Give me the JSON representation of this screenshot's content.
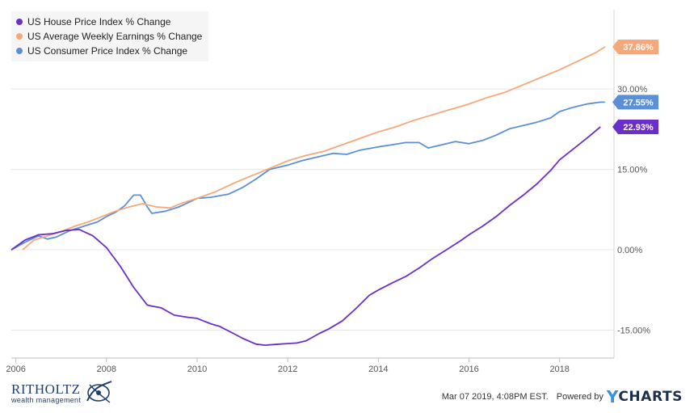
{
  "chart_data": {
    "type": "line",
    "title": "",
    "xlabel": "",
    "ylabel": "",
    "x_range": [
      2005.9,
      2019.2
    ],
    "y_range": [
      -20.2,
      44.8
    ],
    "y_ticks": [
      {
        "value": 30,
        "label": "30.00%"
      },
      {
        "value": 15,
        "label": "15.00%"
      },
      {
        "value": 0,
        "label": "0.00%"
      },
      {
        "value": -15,
        "label": "-15.00%"
      }
    ],
    "x_ticks": [
      {
        "value": 2006,
        "label": "2006"
      },
      {
        "value": 2008,
        "label": "2008"
      },
      {
        "value": 2010,
        "label": "2010"
      },
      {
        "value": 2012,
        "label": "2012"
      },
      {
        "value": 2014,
        "label": "2014"
      },
      {
        "value": 2016,
        "label": "2016"
      },
      {
        "value": 2018,
        "label": "2018"
      }
    ],
    "grid": "horizontal",
    "legend_position": "top-left",
    "series": [
      {
        "name": "US House Price Index % Change",
        "color": "#6a2fc9",
        "end_label": "22.93%",
        "end_value": 22.93,
        "x": [
          2005.9,
          2006.2,
          2006.5,
          2006.8,
          2007.1,
          2007.4,
          2007.7,
          2008.0,
          2008.3,
          2008.6,
          2008.9,
          2009.0,
          2009.2,
          2009.5,
          2009.8,
          2010.0,
          2010.3,
          2010.5,
          2010.8,
          2011.0,
          2011.3,
          2011.5,
          2011.8,
          2012.0,
          2012.2,
          2012.4,
          2012.7,
          2012.9,
          2013.2,
          2013.5,
          2013.8,
          2014.0,
          2014.3,
          2014.6,
          2014.9,
          2015.2,
          2015.5,
          2015.8,
          2016.0,
          2016.3,
          2016.6,
          2016.9,
          2017.2,
          2017.5,
          2017.8,
          2018.0,
          2018.3,
          2018.6,
          2018.9
        ],
        "values": [
          0.0,
          1.8,
          2.8,
          3.0,
          3.6,
          3.8,
          2.6,
          0.4,
          -3.0,
          -7.0,
          -10.3,
          -10.5,
          -10.8,
          -12.2,
          -12.6,
          -12.8,
          -13.8,
          -14.3,
          -15.6,
          -16.5,
          -17.6,
          -17.8,
          -17.6,
          -17.5,
          -17.4,
          -17.0,
          -15.6,
          -14.8,
          -13.3,
          -11.0,
          -8.5,
          -7.5,
          -6.2,
          -5.0,
          -3.4,
          -1.6,
          0.0,
          1.6,
          2.8,
          4.4,
          6.2,
          8.3,
          10.2,
          12.3,
          14.8,
          16.8,
          18.8,
          20.8,
          22.93
        ]
      },
      {
        "name": "US Average Weekly Earnings % Change",
        "color": "#f5a97a",
        "end_label": "37.86%",
        "end_value": 37.86,
        "x": [
          2006.15,
          2006.4,
          2006.7,
          2007.0,
          2007.3,
          2007.6,
          2007.9,
          2008.2,
          2008.5,
          2008.8,
          2009.1,
          2009.4,
          2009.7,
          2010.0,
          2010.4,
          2010.8,
          2011.2,
          2011.6,
          2012.0,
          2012.4,
          2012.8,
          2013.2,
          2013.6,
          2014.0,
          2014.4,
          2014.8,
          2015.2,
          2015.6,
          2016.0,
          2016.4,
          2016.8,
          2017.2,
          2017.6,
          2018.0,
          2018.4,
          2018.8,
          2019.0
        ],
        "values": [
          0.0,
          1.8,
          2.6,
          3.4,
          4.4,
          5.2,
          6.2,
          7.2,
          8.0,
          8.6,
          8.0,
          7.8,
          8.8,
          9.6,
          10.8,
          12.4,
          13.8,
          15.2,
          16.6,
          17.6,
          18.4,
          19.6,
          20.8,
          22.0,
          23.0,
          24.2,
          25.2,
          26.2,
          27.2,
          28.4,
          29.4,
          30.8,
          32.2,
          33.6,
          35.2,
          36.8,
          37.86
        ]
      },
      {
        "name": "US Consumer Price Index % Change",
        "color": "#5b8fd6",
        "end_label": "27.55%",
        "end_value": 27.55,
        "x": [
          2005.9,
          2006.2,
          2006.5,
          2006.7,
          2006.9,
          2007.2,
          2007.5,
          2007.8,
          2008.0,
          2008.2,
          2008.4,
          2008.6,
          2008.75,
          2008.9,
          2009.0,
          2009.3,
          2009.6,
          2010.0,
          2010.3,
          2010.7,
          2011.0,
          2011.3,
          2011.6,
          2012.0,
          2012.3,
          2012.6,
          2013.0,
          2013.3,
          2013.6,
          2014.0,
          2014.3,
          2014.6,
          2014.9,
          2015.1,
          2015.4,
          2015.7,
          2016.0,
          2016.3,
          2016.6,
          2016.9,
          2017.2,
          2017.5,
          2017.8,
          2018.0,
          2018.3,
          2018.6,
          2018.9,
          2019.0
        ],
        "values": [
          0.0,
          1.4,
          2.6,
          2.0,
          2.4,
          3.6,
          4.4,
          5.2,
          6.2,
          7.0,
          8.2,
          10.2,
          10.2,
          8.0,
          6.8,
          7.2,
          8.0,
          9.6,
          9.8,
          10.4,
          11.6,
          13.2,
          15.0,
          15.8,
          16.6,
          17.2,
          18.0,
          17.8,
          18.6,
          19.2,
          19.6,
          20.0,
          20.0,
          19.0,
          19.6,
          20.2,
          19.8,
          20.4,
          21.4,
          22.6,
          23.2,
          23.8,
          24.6,
          25.8,
          26.6,
          27.2,
          27.55,
          27.55
        ]
      }
    ]
  },
  "footer": {
    "brand_name": "RITHOLTZ",
    "brand_sub": "wealth management",
    "timestamp": "Mar 07 2019, 4:08PM EST.",
    "powered_by": "Powered by",
    "ycharts_y": "Y",
    "ycharts_word": "CHARTS"
  }
}
